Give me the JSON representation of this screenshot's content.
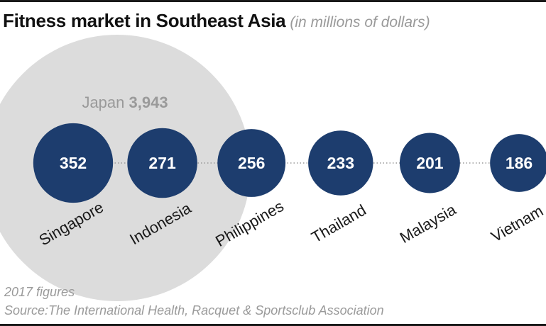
{
  "header": {
    "title": "Fitness market in Southeast Asia",
    "subtitle": "(in millions of dollars)"
  },
  "chart_data": {
    "type": "bubble",
    "title": "Fitness market in Southeast Asia",
    "subtitle": "(in millions of dollars)",
    "reference": {
      "label": "Japan",
      "value": 3943,
      "value_label": "3,943",
      "color": "#dcdcdc"
    },
    "categories": [
      "Singapore",
      "Indonesia",
      "Philippines",
      "Thailand",
      "Malaysia",
      "Vietnam"
    ],
    "values": [
      352,
      271,
      256,
      233,
      201,
      186
    ],
    "value_labels": [
      "352",
      "271",
      "256",
      "233",
      "201",
      "186"
    ],
    "bubble_color": "#1d3d6e",
    "label_color": "#ffffff",
    "connector": "dotted"
  },
  "footer": {
    "note": "2017 figures",
    "source": "Source:The International Health, Racquet & Sportsclub Association"
  }
}
